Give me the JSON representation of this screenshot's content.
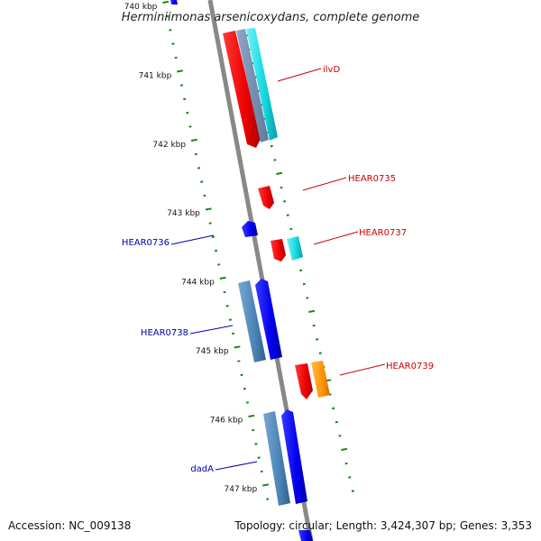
{
  "title": "Herminiimonas arsenicoxydans, complete genome",
  "footer": {
    "accession": "Accession: NC_009138",
    "summary": "Topology: circular; Length: 3,424,307 bp; Genes: 3,353"
  },
  "ticks": [
    "740 kbp",
    "741 kbp",
    "742 kbp",
    "743 kbp",
    "744 kbp",
    "745 kbp",
    "746 kbp",
    "747 kbp"
  ],
  "gene_labels": {
    "ilvD": "ilvD",
    "HEAR0735": "HEAR0735",
    "HEAR0736": "HEAR0736",
    "HEAR0737": "HEAR0737",
    "HEAR0738": "HEAR0738",
    "HEAR0739": "HEAR0739",
    "dadA": "dadA"
  },
  "colors": {
    "forward_cds": "#ff0000",
    "reverse_cds": "#0000ff",
    "forward_other": "#00d8e0",
    "reverse_other": "#4a86b8",
    "orange": "#ff9900",
    "backbone": "#888888",
    "tick": "#118811",
    "label_forward": "#cc0000",
    "label_reverse": "#0000aa"
  }
}
